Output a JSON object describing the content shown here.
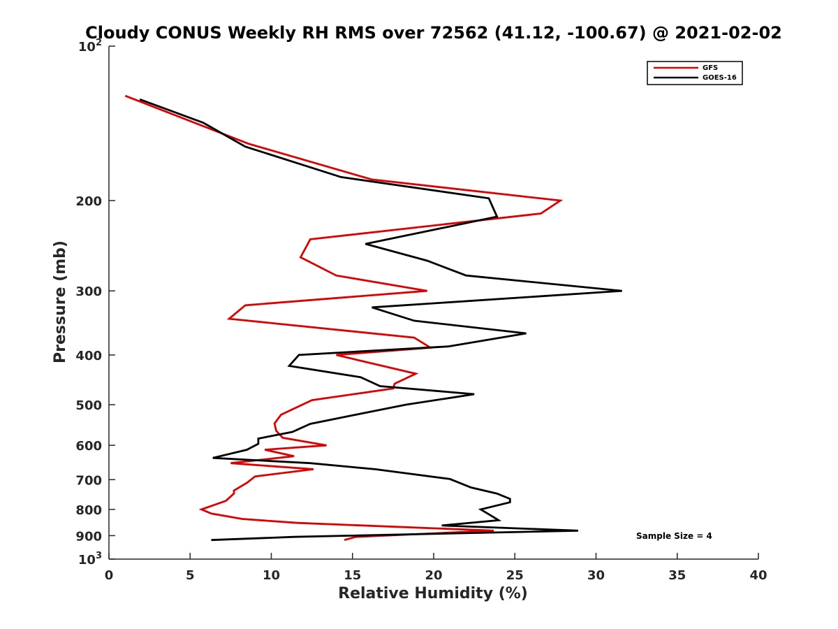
{
  "chart_data": {
    "type": "line",
    "title": "Cloudy CONUS Weekly RH RMS over 72562 (41.12, -100.67) @ 2021-02-02",
    "xlabel": "Relative Humidity (%)",
    "ylabel": "Pressure (mb)",
    "xlim": [
      0,
      40
    ],
    "ylim": [
      100,
      1000
    ],
    "y_scale": "log",
    "y_reversed": true,
    "x_ticks": [
      "0",
      "5",
      "10",
      "15",
      "20",
      "25",
      "30",
      "35",
      "40"
    ],
    "y_ticks": [
      {
        "value": 100,
        "base": "10",
        "exp": "2"
      },
      {
        "value": 200,
        "label": "200"
      },
      {
        "value": 300,
        "label": "300"
      },
      {
        "value": 400,
        "label": "400"
      },
      {
        "value": 500,
        "label": "500"
      },
      {
        "value": 600,
        "label": "600"
      },
      {
        "value": 700,
        "label": "700"
      },
      {
        "value": 800,
        "label": "800"
      },
      {
        "value": 900,
        "label": "900"
      },
      {
        "value": 1000,
        "base": "10",
        "exp": "3"
      }
    ],
    "legend_position": "top-right",
    "annotation": "Sample Size = 4",
    "series": [
      {
        "name": "GFS",
        "color": "#dd0000",
        "points": [
          [
            1.0,
            125
          ],
          [
            8.6,
            155
          ],
          [
            16.2,
            182
          ],
          [
            27.8,
            200
          ],
          [
            26.6,
            212
          ],
          [
            12.4,
            238
          ],
          [
            11.8,
            258
          ],
          [
            14.0,
            280
          ],
          [
            19.6,
            300
          ],
          [
            8.4,
            320
          ],
          [
            7.4,
            340
          ],
          [
            18.8,
            370
          ],
          [
            19.8,
            387
          ],
          [
            14.0,
            400
          ],
          [
            18.9,
            435
          ],
          [
            17.6,
            455
          ],
          [
            17.5,
            465
          ],
          [
            12.5,
            490
          ],
          [
            10.6,
            523
          ],
          [
            10.2,
            544
          ],
          [
            10.3,
            562
          ],
          [
            10.7,
            580
          ],
          [
            13.4,
            600
          ],
          [
            9.6,
            612
          ],
          [
            11.4,
            630
          ],
          [
            7.5,
            650
          ],
          [
            12.6,
            668
          ],
          [
            9.0,
            690
          ],
          [
            8.5,
            710
          ],
          [
            7.7,
            735
          ],
          [
            7.7,
            745
          ],
          [
            7.2,
            770
          ],
          [
            5.7,
            800
          ],
          [
            6.3,
            815
          ],
          [
            8.2,
            835
          ],
          [
            11.6,
            850
          ],
          [
            23.7,
            880
          ],
          [
            15.2,
            905
          ],
          [
            14.5,
            918
          ]
        ]
      },
      {
        "name": "GOES-16",
        "color": "#000000",
        "points": [
          [
            1.9,
            127
          ],
          [
            5.8,
            141
          ],
          [
            8.4,
            157
          ],
          [
            14.3,
            180
          ],
          [
            23.4,
            198
          ],
          [
            23.9,
            215
          ],
          [
            15.8,
            243
          ],
          [
            19.6,
            262
          ],
          [
            22.0,
            280
          ],
          [
            31.6,
            300
          ],
          [
            16.2,
            323
          ],
          [
            18.8,
            343
          ],
          [
            25.7,
            363
          ],
          [
            20.9,
            385
          ],
          [
            11.7,
            400
          ],
          [
            11.1,
            420
          ],
          [
            15.5,
            442
          ],
          [
            16.7,
            460
          ],
          [
            22.5,
            477
          ],
          [
            18.3,
            500
          ],
          [
            15.6,
            520
          ],
          [
            12.4,
            545
          ],
          [
            11.3,
            565
          ],
          [
            9.2,
            582
          ],
          [
            9.2,
            596
          ],
          [
            8.5,
            612
          ],
          [
            6.4,
            635
          ],
          [
            12.4,
            650
          ],
          [
            16.4,
            668
          ],
          [
            21.0,
            698
          ],
          [
            22.3,
            725
          ],
          [
            23.9,
            745
          ],
          [
            24.7,
            763
          ],
          [
            24.7,
            775
          ],
          [
            22.9,
            800
          ],
          [
            23.6,
            825
          ],
          [
            24.0,
            840
          ],
          [
            20.5,
            860
          ],
          [
            28.9,
            880
          ],
          [
            11.4,
            905
          ],
          [
            6.3,
            918
          ]
        ]
      }
    ]
  }
}
